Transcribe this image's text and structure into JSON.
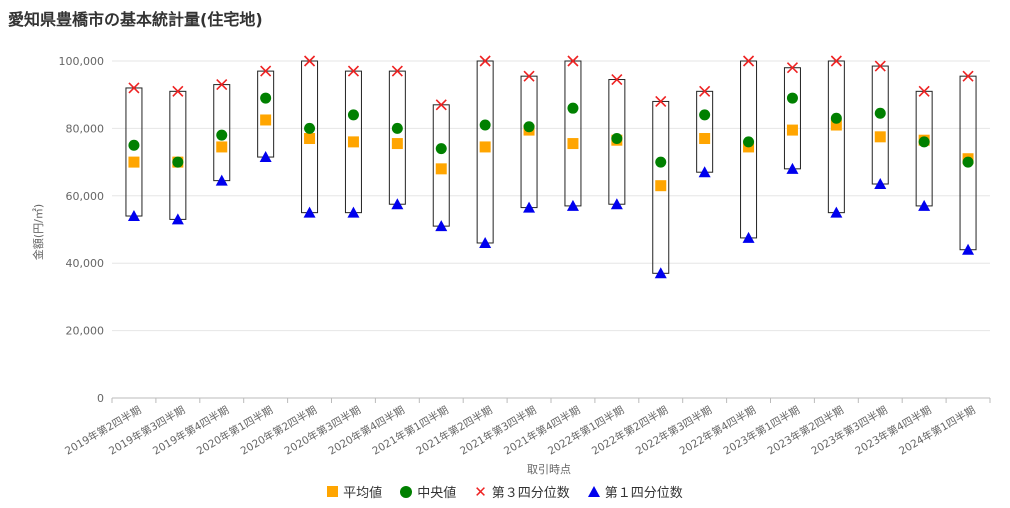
{
  "title": "愛知県豊橋市の基本統計量(住宅地)",
  "chart_data": {
    "type": "box",
    "title": "愛知県豊橋市の基本統計量(住宅地)",
    "xlabel": "取引時点",
    "ylabel": "金額(円/㎡)",
    "ylim": [
      0,
      100000
    ],
    "yticks": [
      "0",
      "20,000",
      "40,000",
      "60,000",
      "80,000",
      "100,000"
    ],
    "grid": true,
    "legend_position": "bottom",
    "categories": [
      "2019年第2四半期",
      "2019年第3四半期",
      "2019年第4四半期",
      "2020年第1四半期",
      "2020年第2四半期",
      "2020年第3四半期",
      "2020年第4四半期",
      "2021年第1四半期",
      "2021年第2四半期",
      "2021年第3四半期",
      "2021年第4四半期",
      "2022年第1四半期",
      "2022年第2四半期",
      "2022年第3四半期",
      "2022年第4四半期",
      "2023年第1四半期",
      "2023年第2四半期",
      "2023年第3四半期",
      "2023年第4四半期",
      "2024年第1四半期"
    ],
    "series": [
      {
        "name": "平均値",
        "color": "#FFA500",
        "marker": "square",
        "values": [
          70000,
          70000,
          74500,
          82500,
          77000,
          76000,
          75500,
          68000,
          74500,
          79500,
          75500,
          76500,
          63000,
          77000,
          74500,
          79500,
          81000,
          77500,
          76500,
          71000
        ]
      },
      {
        "name": "中央値",
        "color": "#008000",
        "marker": "circle",
        "values": [
          75000,
          70000,
          78000,
          89000,
          80000,
          84000,
          80000,
          74000,
          81000,
          80500,
          86000,
          77000,
          70000,
          84000,
          76000,
          89000,
          83000,
          84500,
          76000,
          70000
        ]
      },
      {
        "name": "第３四分位数",
        "color": "#EE2222",
        "marker": "x",
        "values": [
          92000,
          91000,
          93000,
          97000,
          100000,
          97000,
          97000,
          87000,
          100000,
          95500,
          100000,
          94500,
          88000,
          91000,
          100000,
          98000,
          100000,
          98500,
          91000,
          95500
        ]
      },
      {
        "name": "第１四分位数",
        "color": "#0000EE",
        "marker": "triangle",
        "values": [
          54000,
          53000,
          64500,
          71500,
          55000,
          55000,
          57500,
          51000,
          46000,
          56500,
          57000,
          57500,
          37000,
          67000,
          47500,
          68000,
          55000,
          63500,
          57000,
          44000
        ]
      }
    ]
  }
}
